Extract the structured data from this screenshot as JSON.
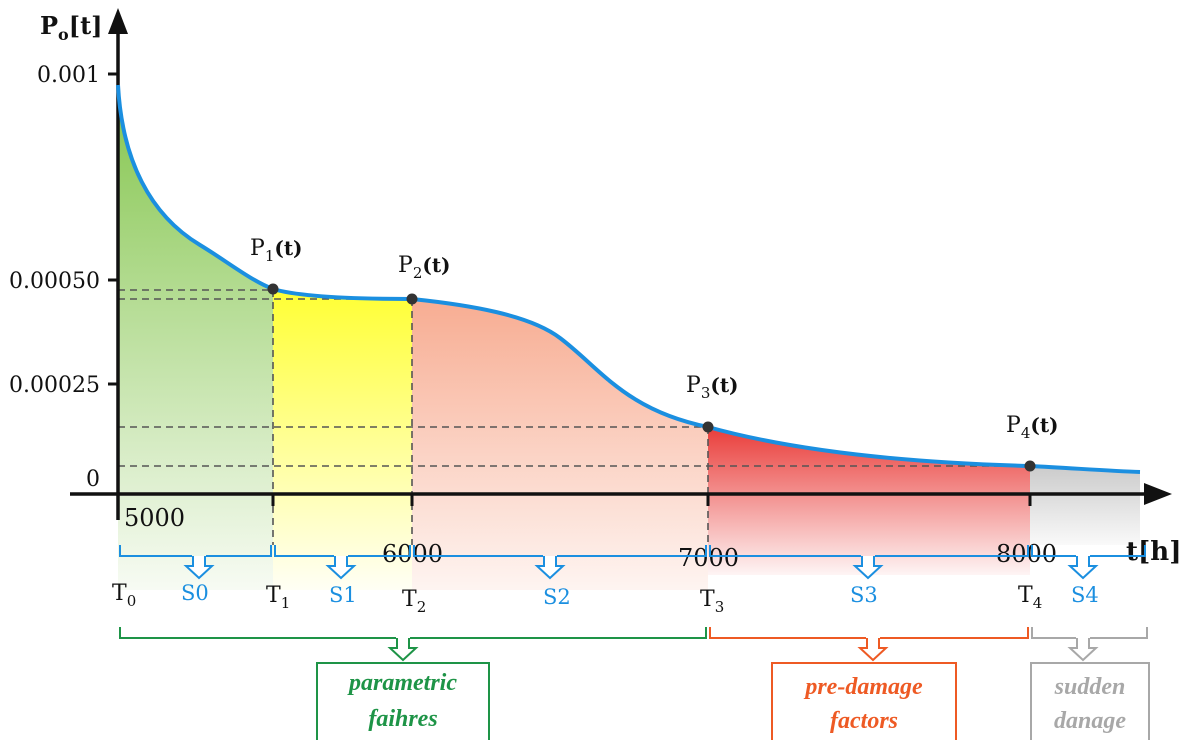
{
  "chart": {
    "y_axis_label": "P",
    "y_axis_sub": "o",
    "y_axis_suffix": "[t]",
    "x_axis_label": "t[h]",
    "y_ticks": [
      "0.001",
      "0.00050",
      "0.00025",
      "0"
    ],
    "x_ticks": [
      "5000",
      "6000",
      "7000",
      "8000"
    ],
    "points": [
      {
        "label": "P",
        "sub": "1",
        "suffix": "(t)"
      },
      {
        "label": "P",
        "sub": "2",
        "suffix": "(t)"
      },
      {
        "label": "P",
        "sub": "3",
        "suffix": "(t)"
      },
      {
        "label": "P",
        "sub": "4",
        "suffix": "(t)"
      }
    ],
    "time_marks": [
      {
        "label": "T",
        "sub": "0"
      },
      {
        "label": "T",
        "sub": "1"
      },
      {
        "label": "T",
        "sub": "2"
      },
      {
        "label": "T",
        "sub": "3"
      },
      {
        "label": "T",
        "sub": "4"
      }
    ],
    "stages": [
      "S0",
      "S1",
      "S2",
      "S3",
      "S4"
    ],
    "groups": [
      {
        "line1": "parametric",
        "line2": "faihres",
        "color": "#1e9447"
      },
      {
        "line1": "pre-damage",
        "line2": "factors",
        "color": "#ee5a24"
      },
      {
        "line1": "sudden",
        "line2": "danage",
        "color": "#a8a8a8"
      }
    ],
    "colors": {
      "curve": "#1b8fe0",
      "axis": "#111111",
      "stage_label": "#1b8fe0",
      "zone_green": "#7dc243",
      "zone_yellow": "#ffff33",
      "zone_salmon": "#f7a88c",
      "zone_red": "#e8322f",
      "zone_gray": "#d0d0d0"
    }
  }
}
